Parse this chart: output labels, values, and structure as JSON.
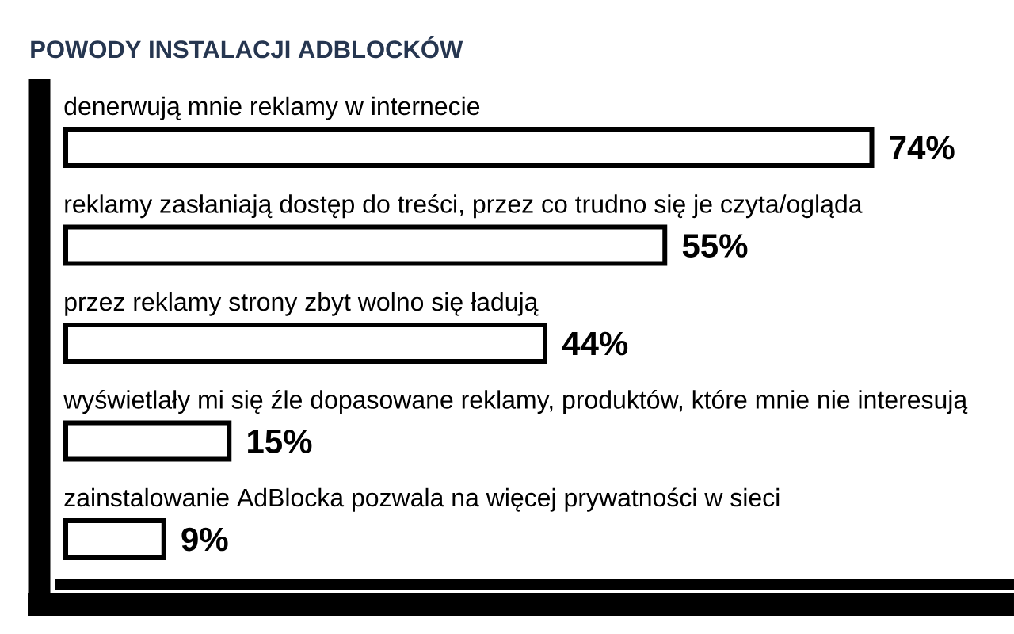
{
  "chart_data": {
    "type": "bar",
    "orientation": "horizontal",
    "title": "POWODY INSTALACJI ADBLOCKÓW",
    "categories": [
      "denerwują mnie reklamy w internecie",
      "reklamy zasłaniają dostęp do treści, przez co trudno się je czyta/ogląda",
      "przez reklamy strony zbyt wolno się ładują",
      "wyświetlały mi się źle dopasowane reklamy, produktów, które mnie nie interesują",
      "zainstalowanie AdBlocka pozwala na więcej prywatności w sieci"
    ],
    "values": [
      74,
      55,
      44,
      15,
      9
    ],
    "value_labels": [
      "74%",
      "55%",
      "44%",
      "15%",
      "9%"
    ],
    "color": "#ffffff"
  }
}
